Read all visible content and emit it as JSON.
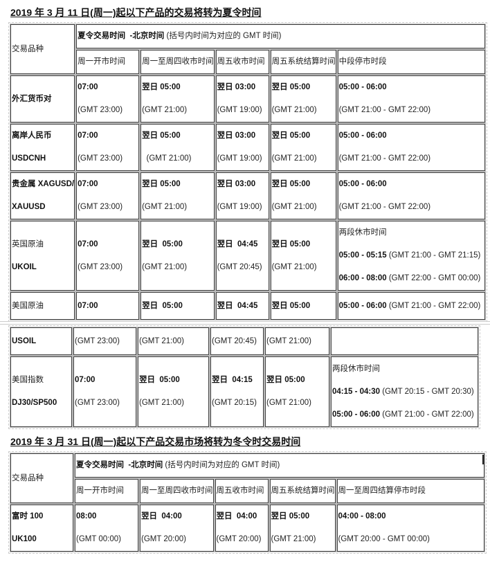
{
  "section1": {
    "title": "2019 年 3 月 11 日(周一)起以下产品的交易将转为夏令时间",
    "product_header": "交易品种",
    "group_header": [
      {
        "t": "夏令交易时间  -北京时间 ",
        "b": true
      },
      {
        "t": "(括号内时间为对应的 GMT 时间)",
        "b": false
      }
    ],
    "columns": [
      "周一开市时间",
      "周一至周四收市时间",
      "周五收市时间",
      "周五系统结算时间",
      "中段停市时段"
    ],
    "rows": [
      {
        "cells": [
          {
            "lines": [
              [
                {
                  "t": "外汇货币对",
                  "b": true
                }
              ]
            ]
          },
          {
            "lines": [
              [
                {
                  "t": "07:00",
                  "b": true
                }
              ],
              [
                {
                  "t": "(GMT 23:00)",
                  "b": false
                }
              ]
            ]
          },
          {
            "lines": [
              [
                {
                  "t": "翌日 05:00",
                  "b": true
                }
              ],
              [
                {
                  "t": "(GMT 21:00)",
                  "b": false
                }
              ]
            ]
          },
          {
            "lines": [
              [
                {
                  "t": "翌日 03:00",
                  "b": true
                }
              ],
              [
                {
                  "t": "(GMT 19:00)",
                  "b": false
                }
              ]
            ]
          },
          {
            "lines": [
              [
                {
                  "t": "翌日 05:00",
                  "b": true
                }
              ],
              [
                {
                  "t": "(GMT 21:00)",
                  "b": false
                }
              ]
            ]
          },
          {
            "lines": [
              [
                {
                  "t": "05:00 - 06:00",
                  "b": true
                }
              ],
              [
                {
                  "t": "(GMT 21:00 - GMT 22:00)",
                  "b": false
                }
              ]
            ]
          }
        ]
      },
      {
        "cells": [
          {
            "lines": [
              [
                {
                  "t": "离岸人民币",
                  "b": true
                }
              ],
              [
                {
                  "t": "USDCNH",
                  "b": true
                }
              ]
            ]
          },
          {
            "lines": [
              [
                {
                  "t": "07:00",
                  "b": true
                }
              ],
              [
                {
                  "t": "(GMT 23:00)",
                  "b": false
                }
              ]
            ]
          },
          {
            "lines": [
              [
                {
                  "t": "翌日 05:00",
                  "b": true
                }
              ],
              [
                {
                  "t": "  (GMT 21:00)",
                  "b": false
                }
              ]
            ]
          },
          {
            "lines": [
              [
                {
                  "t": "翌日 03:00",
                  "b": true
                }
              ],
              [
                {
                  "t": "(GMT 19:00)",
                  "b": false
                }
              ]
            ]
          },
          {
            "lines": [
              [
                {
                  "t": "翌日 05:00",
                  "b": true
                }
              ],
              [
                {
                  "t": "(GMT 21:00)",
                  "b": false
                }
              ]
            ]
          },
          {
            "lines": [
              [
                {
                  "t": "05:00 - 06:00",
                  "b": true
                }
              ],
              [
                {
                  "t": "(GMT 21:00 - GMT 22:00)",
                  "b": false
                }
              ]
            ]
          }
        ]
      },
      {
        "cells": [
          {
            "lines": [
              [
                {
                  "t": "贵金属 XAGUSD/",
                  "b": true
                }
              ],
              [
                {
                  "t": "XAUUSD",
                  "b": true
                }
              ]
            ]
          },
          {
            "lines": [
              [
                {
                  "t": "07:00",
                  "b": true
                }
              ],
              [
                {
                  "t": "(GMT 23:00)",
                  "b": false
                }
              ]
            ]
          },
          {
            "lines": [
              [
                {
                  "t": "翌日 05:00",
                  "b": true
                }
              ],
              [
                {
                  "t": "(GMT 21:00)",
                  "b": false
                }
              ]
            ]
          },
          {
            "lines": [
              [
                {
                  "t": "翌日 03:00",
                  "b": true
                }
              ],
              [
                {
                  "t": "(GMT 19:00)",
                  "b": false
                }
              ]
            ]
          },
          {
            "lines": [
              [
                {
                  "t": "翌日 05:00",
                  "b": true
                }
              ],
              [
                {
                  "t": "(GMT 21:00)",
                  "b": false
                }
              ]
            ]
          },
          {
            "lines": [
              [
                {
                  "t": "05:00 - 06:00",
                  "b": true
                }
              ],
              [
                {
                  "t": "(GMT 21:00 - GMT 22:00)",
                  "b": false
                }
              ]
            ]
          }
        ]
      },
      {
        "cells": [
          {
            "lines": [
              [
                {
                  "t": "英国原油",
                  "b": false
                }
              ],
              [
                {
                  "t": "UKOIL",
                  "b": true
                }
              ]
            ]
          },
          {
            "lines": [
              [
                {
                  "t": "07:00",
                  "b": true
                }
              ],
              [
                {
                  "t": "(GMT 23:00)",
                  "b": false
                }
              ]
            ]
          },
          {
            "lines": [
              [
                {
                  "t": "翌日  05:00",
                  "b": true
                }
              ],
              [
                {
                  "t": "(GMT 21:00)",
                  "b": false
                }
              ]
            ]
          },
          {
            "lines": [
              [
                {
                  "t": "翌日  04:45",
                  "b": true
                }
              ],
              [
                {
                  "t": "(GMT 20:45)",
                  "b": false
                }
              ]
            ]
          },
          {
            "lines": [
              [
                {
                  "t": "翌日 05:00",
                  "b": true
                }
              ],
              [
                {
                  "t": "(GMT 21:00)",
                  "b": false
                }
              ]
            ]
          },
          {
            "lines": [
              [
                {
                  "t": "两段休市时间",
                  "b": false
                }
              ],
              [
                {
                  "t": "05:00 - 05:15",
                  "b": true
                },
                {
                  "t": " (GMT 21:00 - GMT 21:15)",
                  "b": false
                }
              ],
              [
                {
                  "t": "06:00 - 08:00",
                  "b": true
                },
                {
                  "t": " (GMT 22:00 - GMT 00:00)",
                  "b": false
                }
              ]
            ]
          }
        ]
      },
      {
        "cells": [
          {
            "lines": [
              [
                {
                  "t": "美国原油",
                  "b": false
                }
              ]
            ]
          },
          {
            "lines": [
              [
                {
                  "t": "07:00",
                  "b": true
                }
              ]
            ]
          },
          {
            "lines": [
              [
                {
                  "t": "翌日  05:00",
                  "b": true
                }
              ]
            ]
          },
          {
            "lines": [
              [
                {
                  "t": "翌日  04:45",
                  "b": true
                }
              ]
            ]
          },
          {
            "lines": [
              [
                {
                  "t": "翌日 05:00",
                  "b": true
                }
              ]
            ]
          },
          {
            "lines": [
              [
                {
                  "t": "05:00 - 06:00",
                  "b": true
                },
                {
                  "t": " (GMT 21:00 - GMT 22:00)",
                  "b": false
                }
              ]
            ]
          }
        ]
      },
      {
        "cells": [
          {
            "lines": [
              [
                {
                  "t": "USOIL",
                  "b": true
                }
              ]
            ]
          },
          {
            "lines": [
              [
                {
                  "t": "(GMT 23:00)",
                  "b": false
                }
              ]
            ]
          },
          {
            "lines": [
              [
                {
                  "t": "(GMT 21:00)",
                  "b": false
                }
              ]
            ]
          },
          {
            "lines": [
              [
                {
                  "t": "(GMT 20:45)",
                  "b": false
                }
              ]
            ]
          },
          {
            "lines": [
              [
                {
                  "t": "(GMT 21:00)",
                  "b": false
                }
              ]
            ]
          },
          {
            "lines": []
          }
        ]
      },
      {
        "cells": [
          {
            "lines": [
              [
                {
                  "t": "美国指数",
                  "b": false
                }
              ],
              [
                {
                  "t": "DJ30/SP500",
                  "b": true
                }
              ]
            ]
          },
          {
            "lines": [
              [
                {
                  "t": "07:00",
                  "b": true
                }
              ],
              [
                {
                  "t": "(GMT 23:00)",
                  "b": false
                }
              ]
            ]
          },
          {
            "lines": [
              [
                {
                  "t": "翌日  05:00",
                  "b": true
                }
              ],
              [
                {
                  "t": "(GMT 21:00)",
                  "b": false
                }
              ]
            ]
          },
          {
            "lines": [
              [
                {
                  "t": "翌日  04:15",
                  "b": true
                }
              ],
              [
                {
                  "t": "(GMT 20:15)",
                  "b": false
                }
              ]
            ]
          },
          {
            "lines": [
              [
                {
                  "t": "翌日 05:00",
                  "b": true
                }
              ],
              [
                {
                  "t": "(GMT 21:00)",
                  "b": false
                }
              ]
            ]
          },
          {
            "lines": [
              [
                {
                  "t": "两段休市时间",
                  "b": false
                }
              ],
              [
                {
                  "t": "04:15 - 04:30",
                  "b": true
                },
                {
                  "t": " (GMT 20:15 - GMT 20:30)",
                  "b": false
                }
              ],
              [
                {
                  "t": "05:00 - 06:00",
                  "b": true
                },
                {
                  "t": " (GMT 21:00 - GMT 22:00)",
                  "b": false
                }
              ]
            ]
          }
        ]
      }
    ]
  },
  "section2": {
    "title": "2019 年 3 月 31 日(周一)起以下产品交易市场将转为冬令时交易时间",
    "product_header": "交易品种",
    "group_header": [
      {
        "t": "夏令交易时间  -北京时间 ",
        "b": true
      },
      {
        "t": "(括号内时间为对应的 GMT 时间)",
        "b": false
      }
    ],
    "columns": [
      "周一开市时间",
      "周一至周四收市时间",
      "周五收市时间",
      "周五系统结算时间",
      "周一至周四结算停市时段"
    ],
    "rows": [
      {
        "cells": [
          {
            "lines": [
              [
                {
                  "t": "富时 100",
                  "b": true
                }
              ],
              [
                {
                  "t": "UK100",
                  "b": true
                }
              ]
            ]
          },
          {
            "lines": [
              [
                {
                  "t": "08:00",
                  "b": true
                }
              ],
              [
                {
                  "t": "(GMT 00:00)",
                  "b": false
                }
              ]
            ]
          },
          {
            "lines": [
              [
                {
                  "t": "翌日  04:00",
                  "b": true
                }
              ],
              [
                {
                  "t": "(GMT 20:00)",
                  "b": false
                }
              ]
            ]
          },
          {
            "lines": [
              [
                {
                  "t": "翌日  04:00",
                  "b": true
                }
              ],
              [
                {
                  "t": "(GMT 20:00)",
                  "b": false
                }
              ]
            ]
          },
          {
            "lines": [
              [
                {
                  "t": "翌日 05:00",
                  "b": true
                }
              ],
              [
                {
                  "t": "(GMT 21:00)",
                  "b": false
                }
              ]
            ]
          },
          {
            "lines": [
              [
                {
                  "t": "04:00 - 08:00",
                  "b": true
                }
              ],
              [
                {
                  "t": "(GMT 20:00 - GMT 00:00)",
                  "b": false
                }
              ]
            ]
          }
        ]
      }
    ]
  }
}
